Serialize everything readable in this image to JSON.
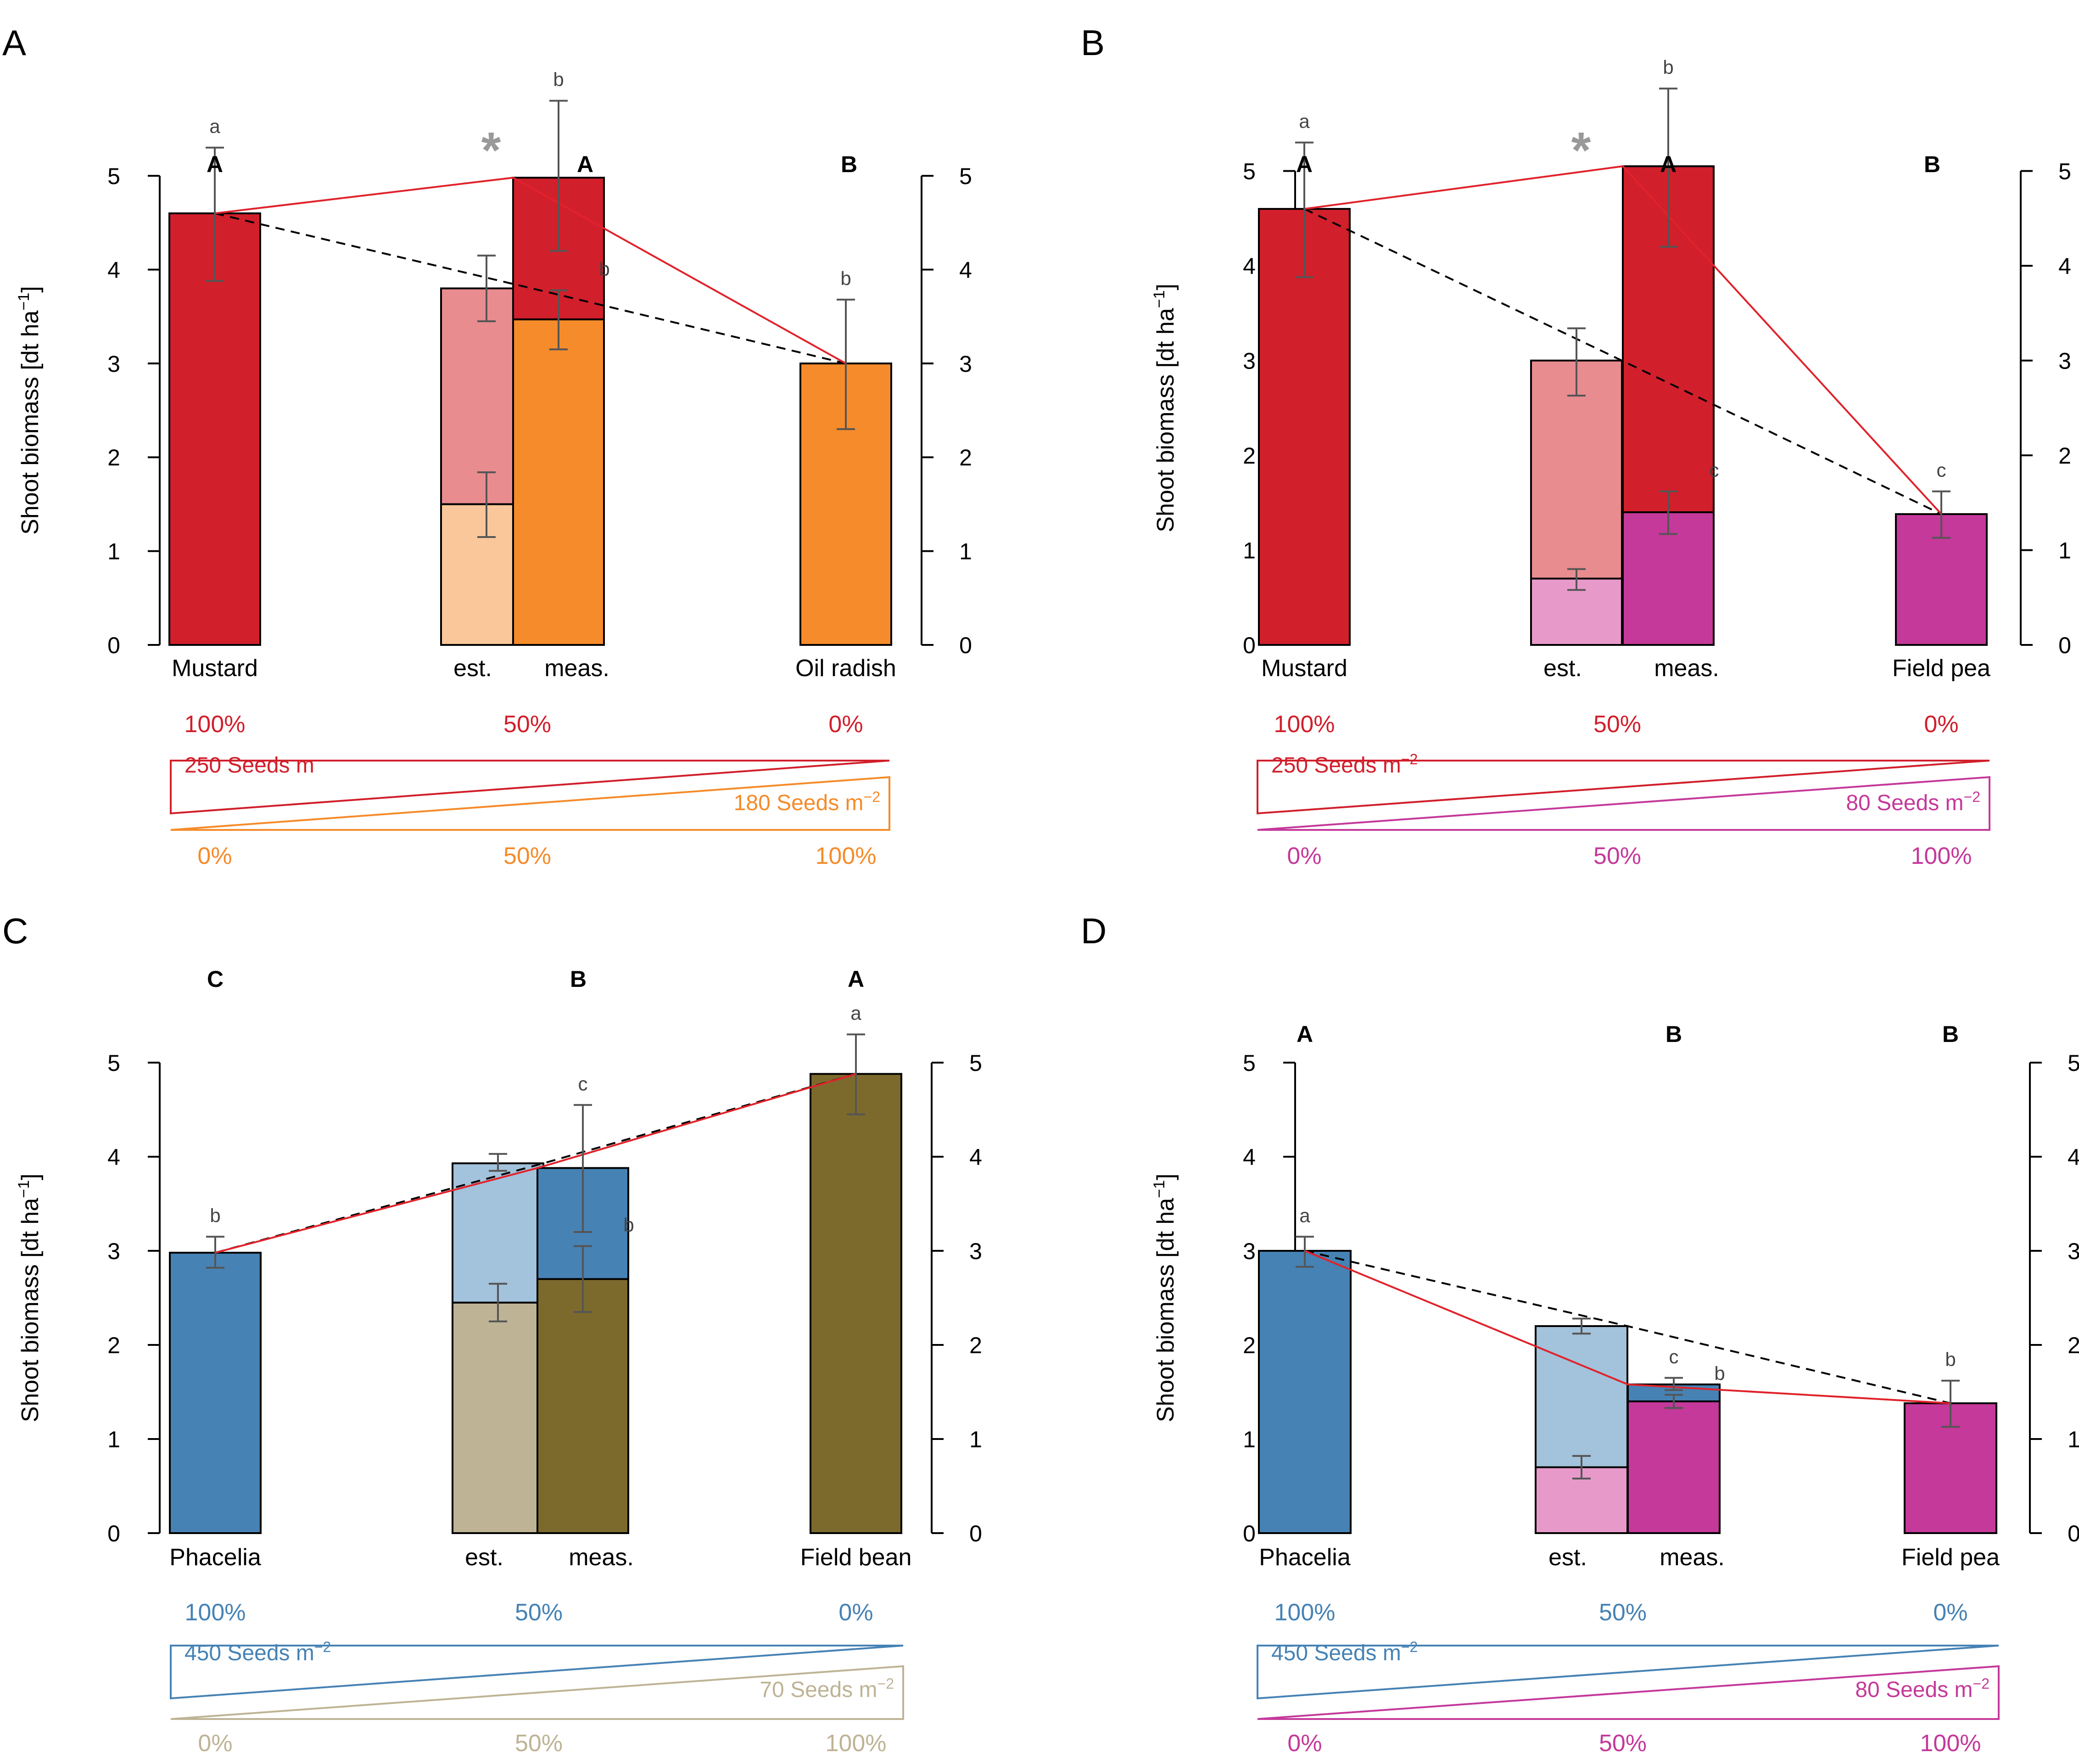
{
  "axis_label": "Shoot biomass [dt ha",
  "axis_label_sup": "−1",
  "axis_label_end": "]",
  "colors": {
    "mustard": "#d11f2b",
    "mustard_light": "#e88c90",
    "oil_radish": "#f58b2a",
    "oil_radish_light": "#f9c79a",
    "field_pea": "#c4399a",
    "field_pea_light": "#e79ac9",
    "phacelia": "#4682b4",
    "phacelia_light": "#a3c2db",
    "field_bean": "#7c6a2c",
    "field_bean_light": "#beb395",
    "error": "#555555",
    "dashed": "#000000",
    "line": "#e0232b",
    "asterisk": "#999999"
  },
  "chart_data": [
    {
      "panel": "A",
      "type": "bar",
      "ylim": [
        0,
        5
      ],
      "ticks": [
        0,
        1,
        2,
        3,
        4,
        5
      ],
      "categories": [
        "Mustard",
        "est.",
        "meas.",
        "Oil radish"
      ],
      "mono_left": {
        "label": "Mustard",
        "value": 4.6,
        "err": [
          3.88,
          5.3
        ],
        "letter": "a",
        "color": "mustard"
      },
      "est": {
        "label": "est.",
        "bottom": 1.5,
        "top": 3.8,
        "bottom_err": [
          1.15,
          1.84
        ],
        "top_err": [
          3.45,
          4.15
        ],
        "bottom_color": "oil_radish_light",
        "top_color": "mustard_light"
      },
      "meas": {
        "label": "meas.",
        "bottom": 3.47,
        "top": 4.98,
        "bottom_err": [
          3.15,
          3.78
        ],
        "top_err": [
          4.2,
          5.8
        ],
        "bottom_letter": "b",
        "top_letter": "b",
        "bottom_color": "oil_radish",
        "top_color": "mustard"
      },
      "mono_right": {
        "label": "Oil radish",
        "value": 3.0,
        "err": [
          2.3,
          3.68
        ],
        "letter": "b",
        "color": "oil_radish"
      },
      "group_letters": [
        "A",
        "A",
        "B"
      ],
      "asterisk": "*",
      "red_line": [
        4.6,
        4.98,
        3.0
      ],
      "dashed_line": [
        4.6,
        3.8,
        3.0
      ],
      "mix": {
        "top_pcts": [
          "100%",
          "50%",
          "0%"
        ],
        "bottom_pcts": [
          "0%",
          "50%",
          "100%"
        ],
        "top_seeds": "250 Seeds m",
        "top_seeds_sup": "",
        "bottom_seeds": "180 Seeds m",
        "bottom_seeds_sup": "−2",
        "top_color": "mustard",
        "bottom_color": "oil_radish"
      }
    },
    {
      "panel": "B",
      "type": "bar",
      "ylim": [
        0,
        5
      ],
      "ticks": [
        0,
        1,
        2,
        3,
        4,
        5
      ],
      "categories": [
        "Mustard",
        "est.",
        "meas.",
        "Field pea"
      ],
      "mono_left": {
        "label": "Mustard",
        "value": 4.6,
        "err": [
          3.88,
          5.3
        ],
        "letter": "a",
        "color": "mustard"
      },
      "est": {
        "label": "est.",
        "bottom": 0.7,
        "top": 3.0,
        "bottom_err": [
          0.58,
          0.8
        ],
        "top_err": [
          2.63,
          3.34
        ],
        "bottom_color": "field_pea_light",
        "top_color": "mustard_light"
      },
      "meas": {
        "label": "meas.",
        "bottom": 1.4,
        "top": 5.05,
        "bottom_err": [
          1.17,
          1.62
        ],
        "top_err": [
          4.2,
          5.87
        ],
        "bottom_letter": "c",
        "top_letter": "b",
        "bottom_color": "field_pea",
        "top_color": "mustard"
      },
      "mono_right": {
        "label": "Field pea",
        "value": 1.38,
        "err": [
          1.13,
          1.62
        ],
        "letter": "c",
        "color": "field_pea"
      },
      "group_letters": [
        "A",
        "A",
        "B"
      ],
      "asterisk": "*",
      "red_line": [
        4.6,
        5.05,
        1.38
      ],
      "dashed_line": [
        4.6,
        3.0,
        1.38
      ],
      "mix": {
        "top_pcts": [
          "100%",
          "50%",
          "0%"
        ],
        "bottom_pcts": [
          "0%",
          "50%",
          "100%"
        ],
        "top_seeds": "250 Seeds m",
        "top_seeds_sup": "−2",
        "bottom_seeds": "80 Seeds m",
        "bottom_seeds_sup": "−2",
        "top_color": "mustard",
        "bottom_color": "field_pea"
      }
    },
    {
      "panel": "C",
      "type": "bar",
      "ylim": [
        0,
        5
      ],
      "ticks": [
        0,
        1,
        2,
        3,
        4,
        5
      ],
      "categories": [
        "Phacelia",
        "est.",
        "meas.",
        "Field bean"
      ],
      "mono_left": {
        "label": "Phacelia",
        "value": 2.98,
        "err": [
          2.82,
          3.15
        ],
        "letter": "b",
        "color": "phacelia"
      },
      "est": {
        "label": "est.",
        "bottom": 2.45,
        "top": 3.93,
        "bottom_err": [
          2.25,
          2.65
        ],
        "top_err": [
          3.85,
          4.03
        ],
        "bottom_color": "field_bean_light",
        "top_color": "phacelia_light"
      },
      "meas": {
        "label": "meas.",
        "bottom": 2.7,
        "top": 3.88,
        "bottom_err": [
          2.35,
          3.05
        ],
        "top_err": [
          3.2,
          4.55
        ],
        "bottom_letter": "b",
        "top_letter": "c",
        "bottom_color": "field_bean",
        "top_color": "phacelia"
      },
      "mono_right": {
        "label": "Field bean",
        "value": 4.88,
        "err": [
          4.45,
          5.3
        ],
        "letter": "a",
        "color": "field_bean"
      },
      "group_letters": [
        "C",
        "B",
        "A"
      ],
      "asterisk": "",
      "red_line": [
        2.98,
        3.88,
        4.88
      ],
      "dashed_line": [
        2.98,
        3.93,
        4.88
      ],
      "mix": {
        "top_pcts": [
          "100%",
          "50%",
          "0%"
        ],
        "bottom_pcts": [
          "0%",
          "50%",
          "100%"
        ],
        "top_seeds": "450 Seeds m",
        "top_seeds_sup": "−2",
        "bottom_seeds": "70 Seeds m",
        "bottom_seeds_sup": "−2",
        "top_color": "phacelia",
        "bottom_color": "field_bean_light"
      }
    },
    {
      "panel": "D",
      "type": "bar",
      "ylim": [
        0,
        5
      ],
      "ticks": [
        0,
        1,
        2,
        3,
        4,
        5
      ],
      "categories": [
        "Phacelia",
        "est.",
        "meas.",
        "Field pea"
      ],
      "mono_left": {
        "label": "Phacelia",
        "value": 3.0,
        "err": [
          2.83,
          3.15
        ],
        "letter": "a",
        "color": "phacelia"
      },
      "est": {
        "label": "est.",
        "bottom": 0.7,
        "top": 2.2,
        "bottom_err": [
          0.58,
          0.82
        ],
        "top_err": [
          2.12,
          2.28
        ],
        "bottom_color": "field_pea_light",
        "top_color": "phacelia_light"
      },
      "meas": {
        "label": "meas.",
        "bottom": 1.4,
        "top": 1.58,
        "bottom_err": [
          1.33,
          1.47
        ],
        "top_err": [
          1.52,
          1.65
        ],
        "bottom_letter": "b",
        "top_letter": "c",
        "bottom_color": "field_pea",
        "top_color": "phacelia"
      },
      "mono_right": {
        "label": "Field pea",
        "value": 1.38,
        "err": [
          1.13,
          1.62
        ],
        "letter": "b",
        "color": "field_pea"
      },
      "group_letters": [
        "A",
        "B",
        "B"
      ],
      "asterisk": "",
      "red_line": [
        3.0,
        1.58,
        1.38
      ],
      "dashed_line": [
        3.0,
        2.2,
        1.38
      ],
      "mix": {
        "top_pcts": [
          "100%",
          "50%",
          "0%"
        ],
        "bottom_pcts": [
          "0%",
          "50%",
          "100%"
        ],
        "top_seeds": "450 Seeds m",
        "top_seeds_sup": "−2",
        "bottom_seeds": "80 Seeds m",
        "bottom_seeds_sup": "−2",
        "top_color": "phacelia",
        "bottom_color": "field_pea"
      }
    }
  ]
}
